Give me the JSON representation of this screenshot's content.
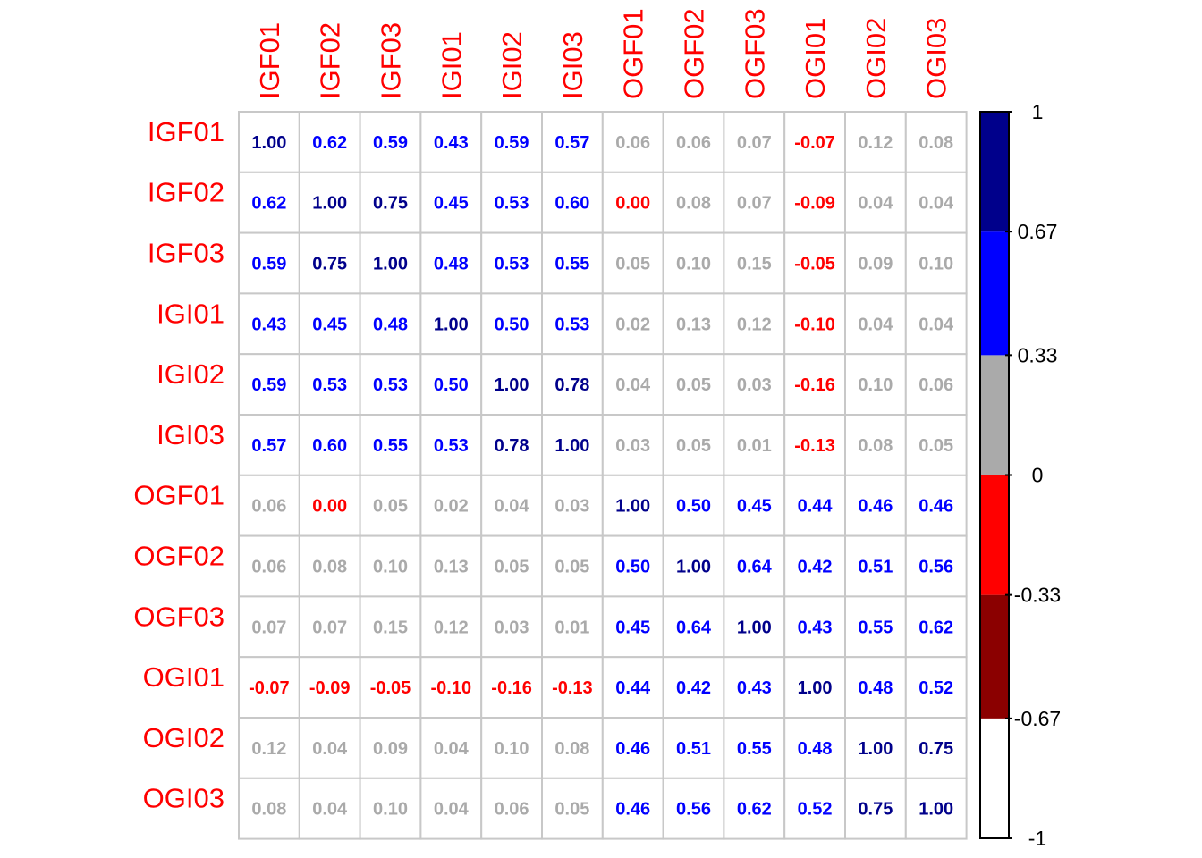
{
  "chart_data": {
    "type": "heatmap",
    "title": "",
    "xlabel": "",
    "ylabel": "",
    "variables": [
      "IGF01",
      "IGF02",
      "IGF03",
      "IGI01",
      "IGI02",
      "IGI03",
      "OGF01",
      "OGF02",
      "OGF03",
      "OGI01",
      "OGI02",
      "OGI03"
    ],
    "matrix": [
      [
        1.0,
        0.62,
        0.59,
        0.43,
        0.59,
        0.57,
        0.06,
        0.06,
        0.07,
        -0.07,
        0.12,
        0.08
      ],
      [
        0.62,
        1.0,
        0.75,
        0.45,
        0.53,
        0.6,
        0.0,
        0.08,
        0.07,
        -0.09,
        0.04,
        0.04
      ],
      [
        0.59,
        0.75,
        1.0,
        0.48,
        0.53,
        0.55,
        0.05,
        0.1,
        0.15,
        -0.05,
        0.09,
        0.1
      ],
      [
        0.43,
        0.45,
        0.48,
        1.0,
        0.5,
        0.53,
        0.02,
        0.13,
        0.12,
        -0.1,
        0.04,
        0.04
      ],
      [
        0.59,
        0.53,
        0.53,
        0.5,
        1.0,
        0.78,
        0.04,
        0.05,
        0.03,
        -0.16,
        0.1,
        0.06
      ],
      [
        0.57,
        0.6,
        0.55,
        0.53,
        0.78,
        1.0,
        0.03,
        0.05,
        0.01,
        -0.13,
        0.08,
        0.05
      ],
      [
        0.06,
        0.0,
        0.05,
        0.02,
        0.04,
        0.03,
        1.0,
        0.5,
        0.45,
        0.44,
        0.46,
        0.46
      ],
      [
        0.06,
        0.08,
        0.1,
        0.13,
        0.05,
        0.05,
        0.5,
        1.0,
        0.64,
        0.42,
        0.51,
        0.56
      ],
      [
        0.07,
        0.07,
        0.15,
        0.12,
        0.03,
        0.01,
        0.45,
        0.64,
        1.0,
        0.43,
        0.55,
        0.62
      ],
      [
        -0.07,
        -0.09,
        -0.05,
        -0.1,
        -0.16,
        -0.13,
        0.44,
        0.42,
        0.43,
        1.0,
        0.48,
        0.52
      ],
      [
        0.12,
        0.04,
        0.09,
        0.04,
        0.1,
        0.08,
        0.46,
        0.51,
        0.55,
        0.48,
        1.0,
        0.75
      ],
      [
        0.08,
        0.04,
        0.1,
        0.04,
        0.06,
        0.05,
        0.46,
        0.56,
        0.62,
        0.52,
        0.75,
        1.0
      ]
    ],
    "value_range": [
      -1,
      1
    ],
    "colorbar": {
      "breaks": [
        -1,
        -0.67,
        -0.33,
        0,
        0.33,
        0.67,
        1
      ],
      "tick_labels": [
        "-1",
        "-0.67",
        "-0.33",
        "0",
        "0.33",
        "0.67",
        "1"
      ],
      "bin_colors": [
        "#ffffff",
        "#8b0000",
        "#ff0000",
        "#aaaaaa",
        "#0000ff",
        "#00008b"
      ]
    },
    "label_color": "#ff0000",
    "grid_color": "#c8c8c8"
  }
}
